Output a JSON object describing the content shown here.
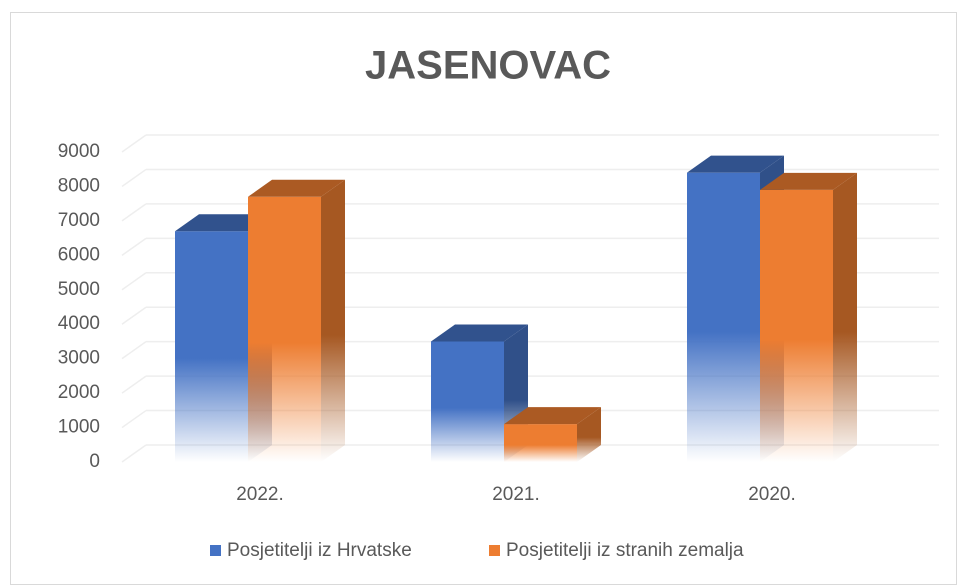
{
  "chart_data": {
    "type": "bar3d",
    "title": "JASENOVAC",
    "categories": [
      "2022.",
      "2021.",
      "2020."
    ],
    "series": [
      {
        "name": "Posjetitelji iz Hrvatske",
        "color": "#4472c4",
        "values": [
          6700,
          3500,
          8400
        ]
      },
      {
        "name": "Posjetitelji iz stranih zemalja",
        "color": "#ed7d31",
        "values": [
          7700,
          1100,
          7900
        ]
      }
    ],
    "ylim": [
      0,
      9000
    ],
    "yticks": [
      0,
      1000,
      2000,
      3000,
      4000,
      5000,
      6000,
      7000,
      8000,
      9000
    ],
    "grid": true,
    "legend": "bottom"
  }
}
